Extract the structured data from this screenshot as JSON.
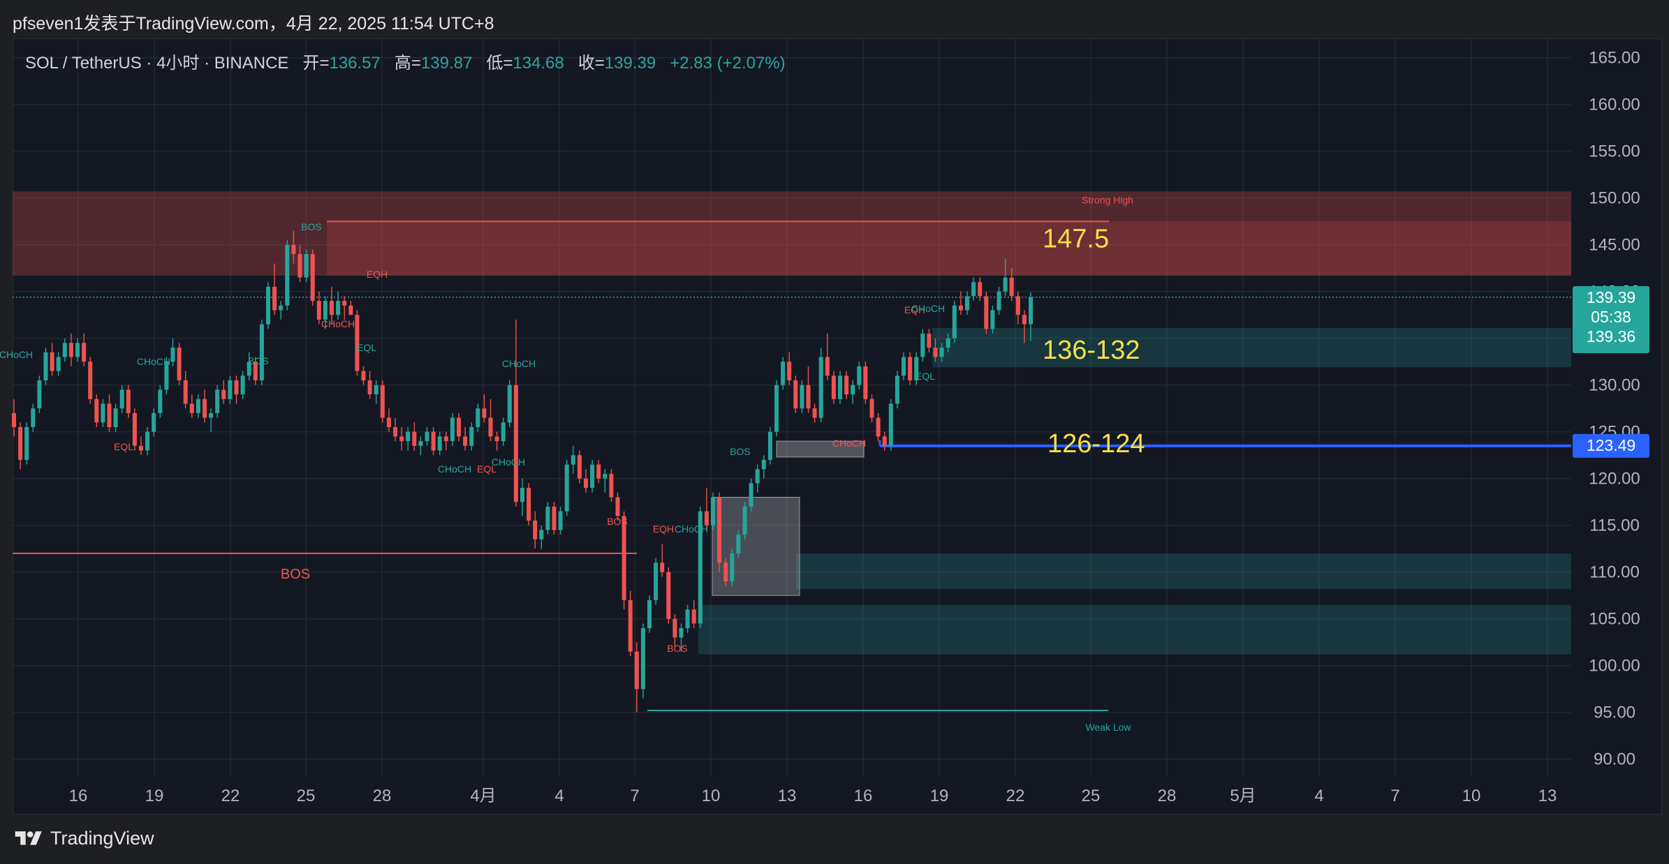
{
  "header": {
    "title": "pfseven1发表于TradingView.com，4月 22, 2025 11:54 UTC+8"
  },
  "legend": {
    "symbol": "SOL / TetherUS · 4小时 · BINANCE",
    "open_label": "开=",
    "open": "136.57",
    "high_label": "高=",
    "high": "139.87",
    "low_label": "低=",
    "low": "134.68",
    "close_label": "收=",
    "close": "139.39",
    "change": "+2.83 (+2.07%)"
  },
  "footer": {
    "brand": "TradingView"
  },
  "colors": {
    "up": "#26a69a",
    "down": "#ef5350",
    "bg": "#141823",
    "grid": "#2a2e39",
    "axis_text": "#b2b5be",
    "blue_line": "#2962ff",
    "annotation_yellow": "#f5e14a"
  },
  "chart_data": {
    "type": "candlestick",
    "x_axis_labels": [
      "16",
      "19",
      "22",
      "25",
      "28",
      "4月",
      "4",
      "7",
      "10",
      "13",
      "16",
      "19",
      "22",
      "25",
      "28",
      "5月",
      "4",
      "7",
      "10",
      "13"
    ],
    "y_axis_labels": [
      "165.00",
      "160.00",
      "155.00",
      "150.00",
      "145.00",
      "140.00",
      "135.00",
      "130.00",
      "125.00",
      "120.00",
      "115.00",
      "110.00",
      "105.00",
      "100.00",
      "95.00",
      "90.00"
    ],
    "ylim": [
      88.8,
      167.5
    ],
    "price_tags": {
      "last_price": "139.39",
      "countdown": "05:38",
      "mid": "139.36",
      "blue_line": "123.49"
    },
    "zones": [
      {
        "from": 141.7,
        "to": 150.7,
        "label": "Strong High",
        "color": "#ef5350"
      },
      {
        "from": 131.9,
        "to": 136.1,
        "color": "#26a69a"
      },
      {
        "from": 108.2,
        "to": 112.0,
        "color": "#26a69a"
      },
      {
        "from": 101.2,
        "to": 106.5,
        "color": "#26a69a"
      }
    ],
    "text_annotations": [
      {
        "text": "147.5",
        "price": 145.6
      },
      {
        "text": "136-132",
        "price": 133.7
      },
      {
        "text": "126-124",
        "price": 123.7
      }
    ],
    "structure_labels": [
      "BOS",
      "EQH",
      "CHoCH",
      "EQL",
      "CHoCH",
      "BOS",
      "CHoCH",
      "CHoCH",
      "EQL",
      "CHoCH",
      "EQL",
      "CHoCH",
      "BOS",
      "BOS",
      "EQH",
      "CHoCH",
      "BOS",
      "EQH",
      "CHoCH",
      "EQL",
      "CHoCH",
      "BOS",
      "Weak Low"
    ],
    "candles": [
      [
        127.0,
        128.5,
        124.5,
        125.5
      ],
      [
        125.5,
        126.0,
        121.0,
        122.0
      ],
      [
        122.0,
        126.0,
        121.5,
        125.5
      ],
      [
        125.5,
        128.0,
        125.0,
        127.5
      ],
      [
        127.5,
        131.0,
        127.0,
        130.5
      ],
      [
        130.5,
        134.0,
        130.0,
        133.5
      ],
      [
        133.5,
        134.5,
        131.0,
        131.5
      ],
      [
        131.5,
        133.5,
        131.0,
        133.0
      ],
      [
        133.0,
        135.0,
        132.5,
        134.5
      ],
      [
        134.5,
        135.5,
        132.0,
        133.0
      ],
      [
        133.0,
        135.0,
        132.5,
        134.5
      ],
      [
        134.5,
        135.5,
        132.0,
        132.5
      ],
      [
        132.5,
        133.0,
        128.0,
        128.5
      ],
      [
        128.5,
        129.0,
        125.5,
        126.0
      ],
      [
        126.0,
        128.5,
        125.5,
        128.0
      ],
      [
        128.0,
        129.0,
        125.0,
        125.5
      ],
      [
        125.5,
        128.0,
        125.0,
        127.5
      ],
      [
        127.5,
        130.0,
        127.0,
        129.5
      ],
      [
        129.5,
        130.0,
        126.5,
        127.0
      ],
      [
        127.0,
        127.5,
        123.0,
        123.5
      ],
      [
        123.5,
        124.5,
        122.5,
        123.0
      ],
      [
        123.0,
        125.5,
        122.5,
        125.0
      ],
      [
        125.0,
        127.5,
        124.5,
        127.0
      ],
      [
        127.0,
        130.0,
        126.5,
        129.5
      ],
      [
        129.5,
        133.0,
        129.0,
        132.5
      ],
      [
        132.5,
        135.0,
        132.0,
        134.0
      ],
      [
        134.0,
        134.5,
        130.0,
        130.5
      ],
      [
        130.5,
        131.5,
        127.5,
        128.0
      ],
      [
        128.0,
        129.0,
        126.5,
        127.0
      ],
      [
        127.0,
        129.0,
        126.5,
        128.5
      ],
      [
        128.5,
        129.5,
        126.0,
        126.5
      ],
      [
        126.5,
        127.5,
        125.0,
        127.0
      ],
      [
        127.0,
        130.0,
        126.5,
        129.5
      ],
      [
        129.5,
        130.5,
        128.0,
        128.5
      ],
      [
        128.5,
        131.0,
        128.0,
        130.5
      ],
      [
        130.5,
        131.0,
        128.0,
        129.0
      ],
      [
        129.0,
        131.5,
        128.5,
        131.0
      ],
      [
        131.0,
        133.5,
        130.5,
        132.5
      ],
      [
        132.5,
        133.0,
        130.0,
        130.5
      ],
      [
        130.5,
        137.0,
        130.0,
        136.5
      ],
      [
        136.5,
        141.0,
        136.0,
        140.5
      ],
      [
        140.5,
        143.0,
        137.5,
        138.0
      ],
      [
        138.0,
        139.0,
        137.0,
        138.5
      ],
      [
        138.5,
        145.5,
        138.0,
        145.0
      ],
      [
        145.0,
        146.5,
        143.0,
        144.0
      ],
      [
        144.0,
        145.0,
        141.0,
        141.5
      ],
      [
        141.5,
        144.5,
        141.0,
        144.0
      ],
      [
        144.0,
        144.5,
        138.5,
        139.0
      ],
      [
        139.0,
        140.0,
        136.5,
        137.0
      ],
      [
        137.0,
        139.5,
        136.0,
        139.0
      ],
      [
        139.0,
        140.5,
        136.5,
        137.5
      ],
      [
        137.5,
        140.0,
        137.0,
        139.0
      ],
      [
        139.0,
        139.5,
        137.0,
        138.5
      ],
      [
        138.5,
        139.0,
        137.5,
        137.5
      ],
      [
        137.5,
        138.0,
        131.0,
        131.5
      ],
      [
        131.5,
        132.0,
        130.0,
        130.5
      ],
      [
        130.5,
        131.5,
        128.5,
        129.0
      ],
      [
        129.0,
        130.5,
        128.0,
        130.0
      ],
      [
        130.0,
        130.5,
        126.0,
        126.5
      ],
      [
        126.5,
        127.5,
        125.0,
        125.5
      ],
      [
        125.5,
        126.5,
        124.0,
        124.5
      ],
      [
        124.5,
        125.5,
        123.0,
        124.0
      ],
      [
        124.0,
        125.5,
        123.0,
        125.0
      ],
      [
        125.0,
        126.0,
        123.0,
        123.5
      ],
      [
        123.5,
        124.5,
        122.5,
        124.0
      ],
      [
        124.0,
        125.5,
        123.5,
        125.0
      ],
      [
        125.0,
        125.5,
        122.5,
        123.0
      ],
      [
        123.0,
        125.0,
        122.5,
        124.5
      ],
      [
        124.5,
        125.0,
        123.0,
        124.0
      ],
      [
        124.0,
        127.0,
        123.5,
        126.5
      ],
      [
        126.5,
        127.0,
        124.0,
        124.5
      ],
      [
        124.5,
        125.5,
        123.0,
        123.5
      ],
      [
        123.5,
        126.0,
        123.0,
        125.5
      ],
      [
        125.5,
        128.0,
        125.0,
        127.5
      ],
      [
        127.5,
        129.0,
        126.0,
        126.5
      ],
      [
        126.5,
        128.5,
        124.0,
        124.5
      ],
      [
        124.5,
        125.0,
        123.0,
        124.0
      ],
      [
        124.0,
        126.5,
        123.5,
        126.0
      ],
      [
        126.0,
        130.5,
        125.5,
        130.0
      ],
      [
        130.0,
        137.0,
        117.0,
        117.5
      ],
      [
        117.5,
        120.0,
        116.0,
        119.0
      ],
      [
        119.0,
        119.5,
        115.0,
        115.5
      ],
      [
        115.5,
        116.5,
        112.5,
        113.5
      ],
      [
        113.5,
        115.0,
        112.5,
        114.5
      ],
      [
        114.5,
        117.5,
        114.0,
        117.0
      ],
      [
        117.0,
        117.5,
        114.0,
        114.5
      ],
      [
        114.5,
        117.0,
        114.0,
        116.5
      ],
      [
        116.5,
        122.0,
        116.0,
        121.5
      ],
      [
        121.5,
        123.5,
        120.5,
        122.5
      ],
      [
        122.5,
        123.0,
        119.5,
        120.0
      ],
      [
        120.0,
        121.0,
        118.5,
        119.0
      ],
      [
        119.0,
        122.0,
        118.5,
        121.5
      ],
      [
        121.5,
        122.0,
        119.5,
        120.0
      ],
      [
        120.0,
        121.0,
        118.5,
        120.5
      ],
      [
        120.5,
        121.0,
        117.5,
        118.0
      ],
      [
        118.0,
        118.5,
        115.5,
        116.0
      ],
      [
        116.0,
        116.5,
        106.0,
        107.0
      ],
      [
        107.0,
        108.0,
        101.0,
        101.5
      ],
      [
        101.5,
        102.5,
        95.0,
        97.5
      ],
      [
        97.5,
        104.5,
        96.5,
        104.0
      ],
      [
        104.0,
        107.5,
        103.5,
        107.0
      ],
      [
        107.0,
        111.5,
        106.5,
        111.0
      ],
      [
        111.0,
        113.0,
        109.5,
        110.0
      ],
      [
        110.0,
        110.5,
        104.5,
        105.0
      ],
      [
        105.0,
        105.5,
        102.0,
        103.0
      ],
      [
        103.0,
        104.5,
        101.5,
        104.0
      ],
      [
        104.0,
        106.5,
        103.5,
        106.0
      ],
      [
        106.0,
        107.0,
        104.0,
        104.5
      ],
      [
        104.5,
        117.0,
        104.0,
        116.5
      ],
      [
        116.5,
        119.0,
        114.5,
        115.0
      ],
      [
        115.0,
        118.5,
        114.5,
        118.0
      ],
      [
        118.0,
        118.5,
        110.0,
        111.0
      ],
      [
        111.0,
        111.5,
        108.5,
        109.0
      ],
      [
        109.0,
        112.5,
        108.5,
        112.0
      ],
      [
        112.0,
        114.5,
        111.5,
        114.0
      ],
      [
        114.0,
        117.5,
        113.5,
        117.0
      ],
      [
        117.0,
        120.0,
        116.5,
        119.5
      ],
      [
        119.5,
        121.5,
        118.5,
        121.0
      ],
      [
        121.0,
        122.5,
        120.0,
        122.0
      ],
      [
        122.0,
        125.5,
        121.5,
        125.0
      ],
      [
        125.0,
        130.5,
        124.5,
        130.0
      ],
      [
        130.0,
        133.0,
        129.5,
        132.5
      ],
      [
        132.5,
        133.5,
        130.0,
        130.5
      ],
      [
        130.5,
        131.0,
        127.0,
        127.5
      ],
      [
        127.5,
        130.5,
        127.0,
        130.0
      ],
      [
        130.0,
        132.0,
        127.0,
        127.5
      ],
      [
        127.5,
        128.0,
        126.0,
        126.5
      ],
      [
        126.5,
        134.0,
        126.0,
        133.0
      ],
      [
        133.0,
        135.5,
        130.5,
        131.0
      ],
      [
        131.0,
        131.5,
        128.0,
        128.5
      ],
      [
        128.5,
        131.5,
        128.0,
        131.0
      ],
      [
        131.0,
        131.5,
        128.5,
        129.0
      ],
      [
        129.0,
        130.5,
        128.0,
        130.0
      ],
      [
        130.0,
        132.5,
        129.5,
        132.0
      ],
      [
        132.0,
        132.5,
        128.0,
        128.5
      ],
      [
        128.5,
        129.0,
        126.0,
        126.5
      ],
      [
        126.5,
        127.0,
        124.0,
        124.5
      ],
      [
        124.5,
        125.0,
        123.0,
        123.5
      ],
      [
        123.5,
        128.5,
        123.0,
        128.0
      ],
      [
        128.0,
        131.5,
        127.5,
        131.0
      ],
      [
        131.0,
        133.5,
        130.5,
        133.0
      ],
      [
        133.0,
        133.5,
        130.0,
        130.5
      ],
      [
        130.5,
        133.5,
        130.0,
        133.0
      ],
      [
        133.0,
        136.0,
        132.5,
        135.5
      ],
      [
        135.5,
        136.0,
        133.5,
        134.0
      ],
      [
        134.0,
        135.0,
        132.5,
        133.0
      ],
      [
        133.0,
        134.5,
        132.5,
        134.0
      ],
      [
        134.0,
        135.5,
        133.5,
        135.0
      ],
      [
        135.0,
        139.0,
        134.5,
        138.5
      ],
      [
        138.5,
        140.0,
        137.5,
        138.0
      ],
      [
        138.0,
        140.0,
        137.5,
        139.5
      ],
      [
        139.5,
        141.5,
        139.0,
        141.0
      ],
      [
        141.0,
        141.5,
        139.0,
        139.5
      ],
      [
        139.5,
        140.0,
        135.5,
        136.0
      ],
      [
        136.0,
        138.5,
        135.5,
        138.0
      ],
      [
        138.0,
        140.5,
        137.5,
        140.0
      ],
      [
        140.0,
        143.5,
        139.5,
        141.5
      ],
      [
        141.5,
        142.5,
        139.0,
        139.5
      ],
      [
        139.5,
        140.0,
        136.5,
        137.5
      ],
      [
        137.5,
        138.0,
        134.5,
        136.5
      ],
      [
        136.5,
        139.9,
        134.7,
        139.4
      ]
    ]
  }
}
